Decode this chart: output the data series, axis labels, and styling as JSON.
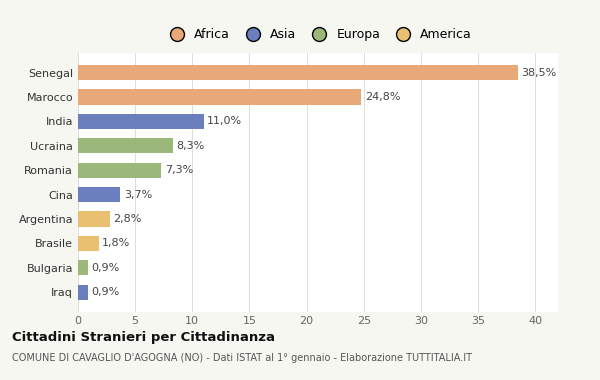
{
  "categories": [
    "Iraq",
    "Bulgaria",
    "Brasile",
    "Argentina",
    "Cina",
    "Romania",
    "Ucraina",
    "India",
    "Marocco",
    "Senegal"
  ],
  "values": [
    0.9,
    0.9,
    1.8,
    2.8,
    3.7,
    7.3,
    8.3,
    11.0,
    24.8,
    38.5
  ],
  "labels": [
    "0,9%",
    "0,9%",
    "1,8%",
    "2,8%",
    "3,7%",
    "7,3%",
    "8,3%",
    "11,0%",
    "24,8%",
    "38,5%"
  ],
  "colors": [
    "#6b7fbe",
    "#9bb87a",
    "#e8c070",
    "#e8c070",
    "#6b7fbe",
    "#9bb87a",
    "#9bb87a",
    "#6b7fbe",
    "#e8a878",
    "#e8a878"
  ],
  "legend": [
    {
      "label": "Africa",
      "color": "#e8a878"
    },
    {
      "label": "Asia",
      "color": "#6b7fbe"
    },
    {
      "label": "Europa",
      "color": "#9bb87a"
    },
    {
      "label": "America",
      "color": "#e8c070"
    }
  ],
  "title": "Cittadini Stranieri per Cittadinanza",
  "subtitle": "COMUNE DI CAVAGLIO D'AGOGNA (NO) - Dati ISTAT al 1° gennaio - Elaborazione TUTTITALIA.IT",
  "xlim": [
    0,
    42
  ],
  "xticks": [
    0,
    5,
    10,
    15,
    20,
    25,
    30,
    35,
    40
  ],
  "background_color": "#f7f7f2",
  "bar_background": "#ffffff",
  "grid_color": "#dddddd"
}
